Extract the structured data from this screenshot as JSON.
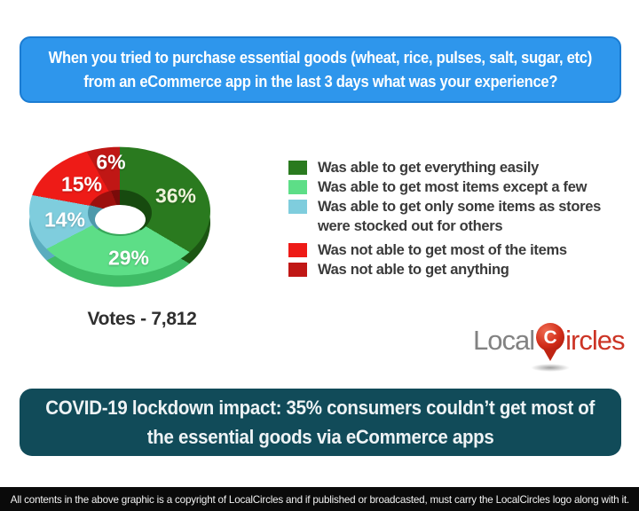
{
  "header": {
    "lines": [
      "When you tried to purchase essential goods (wheat, rice, pulses, salt, sugar, etc)",
      "from an eCommerce app in the last 3 days what was your experience?"
    ],
    "bg_color": "#2e96ec",
    "border_color": "#1b7cd2"
  },
  "chart_data": {
    "type": "pie",
    "style": "3d-donut",
    "start_angle_deg": 0,
    "direction": "clockwise",
    "votes_label": "Votes - 7,812",
    "total_votes": 7812,
    "legend_position": "right",
    "slices": [
      {
        "category": "Was able to get everything easily",
        "value": 36,
        "label": "36%",
        "color": "#2a7a1f",
        "depth_color": "#1c5613",
        "wall_color": "#174a0f"
      },
      {
        "category": "Was able to get most items except a few",
        "value": 29,
        "label": "29%",
        "color": "#5dde87",
        "depth_color": "#3fbc66",
        "wall_color": "#37a85a"
      },
      {
        "category": "Was able to get only some items as stores were stocked out for others",
        "value": 14,
        "label": "14%",
        "color": "#7fcddd",
        "depth_color": "#5aacbf",
        "wall_color": "#4d99ab"
      },
      {
        "category": "Was not able to get most of the items",
        "value": 15,
        "label": "15%",
        "color": "#ee1b17",
        "depth_color": "#b61311",
        "wall_color": "#9c100e"
      },
      {
        "category": "Was not able to get anything",
        "value": 6,
        "label": "6%",
        "color": "#c01715",
        "depth_color": "#8e0f0d",
        "wall_color": "#7a0b0a"
      }
    ]
  },
  "legend": {
    "items": [
      {
        "lines": [
          "Was able to get everything easily",
          ""
        ]
      },
      {
        "lines": [
          "Was able to get most items except a few",
          ""
        ]
      },
      {
        "lines": [
          "Was able to get only some items as stores",
          "were stocked out for others"
        ]
      },
      {
        "lines": [
          "Was not able to get most of the items",
          ""
        ]
      },
      {
        "lines": [
          "Was not able to get anything",
          ""
        ]
      }
    ]
  },
  "logo": {
    "text_left": "Local",
    "pin_letter": "C",
    "text_right": "ircles",
    "text_left_color": "#828282",
    "text_right_color": "#cc3425",
    "pin_color": "#d02c18"
  },
  "conclusion": {
    "lines": [
      "COVID-19 lockdown impact: 35% consumers couldn’t get most of",
      "the essential goods via eCommerce apps"
    ],
    "bg_color": "#114b59"
  },
  "footer": {
    "text": "All contents in the above graphic is a copyright of LocalCircles and if published or broadcasted, must carry the LocalCircles logo along with it."
  }
}
